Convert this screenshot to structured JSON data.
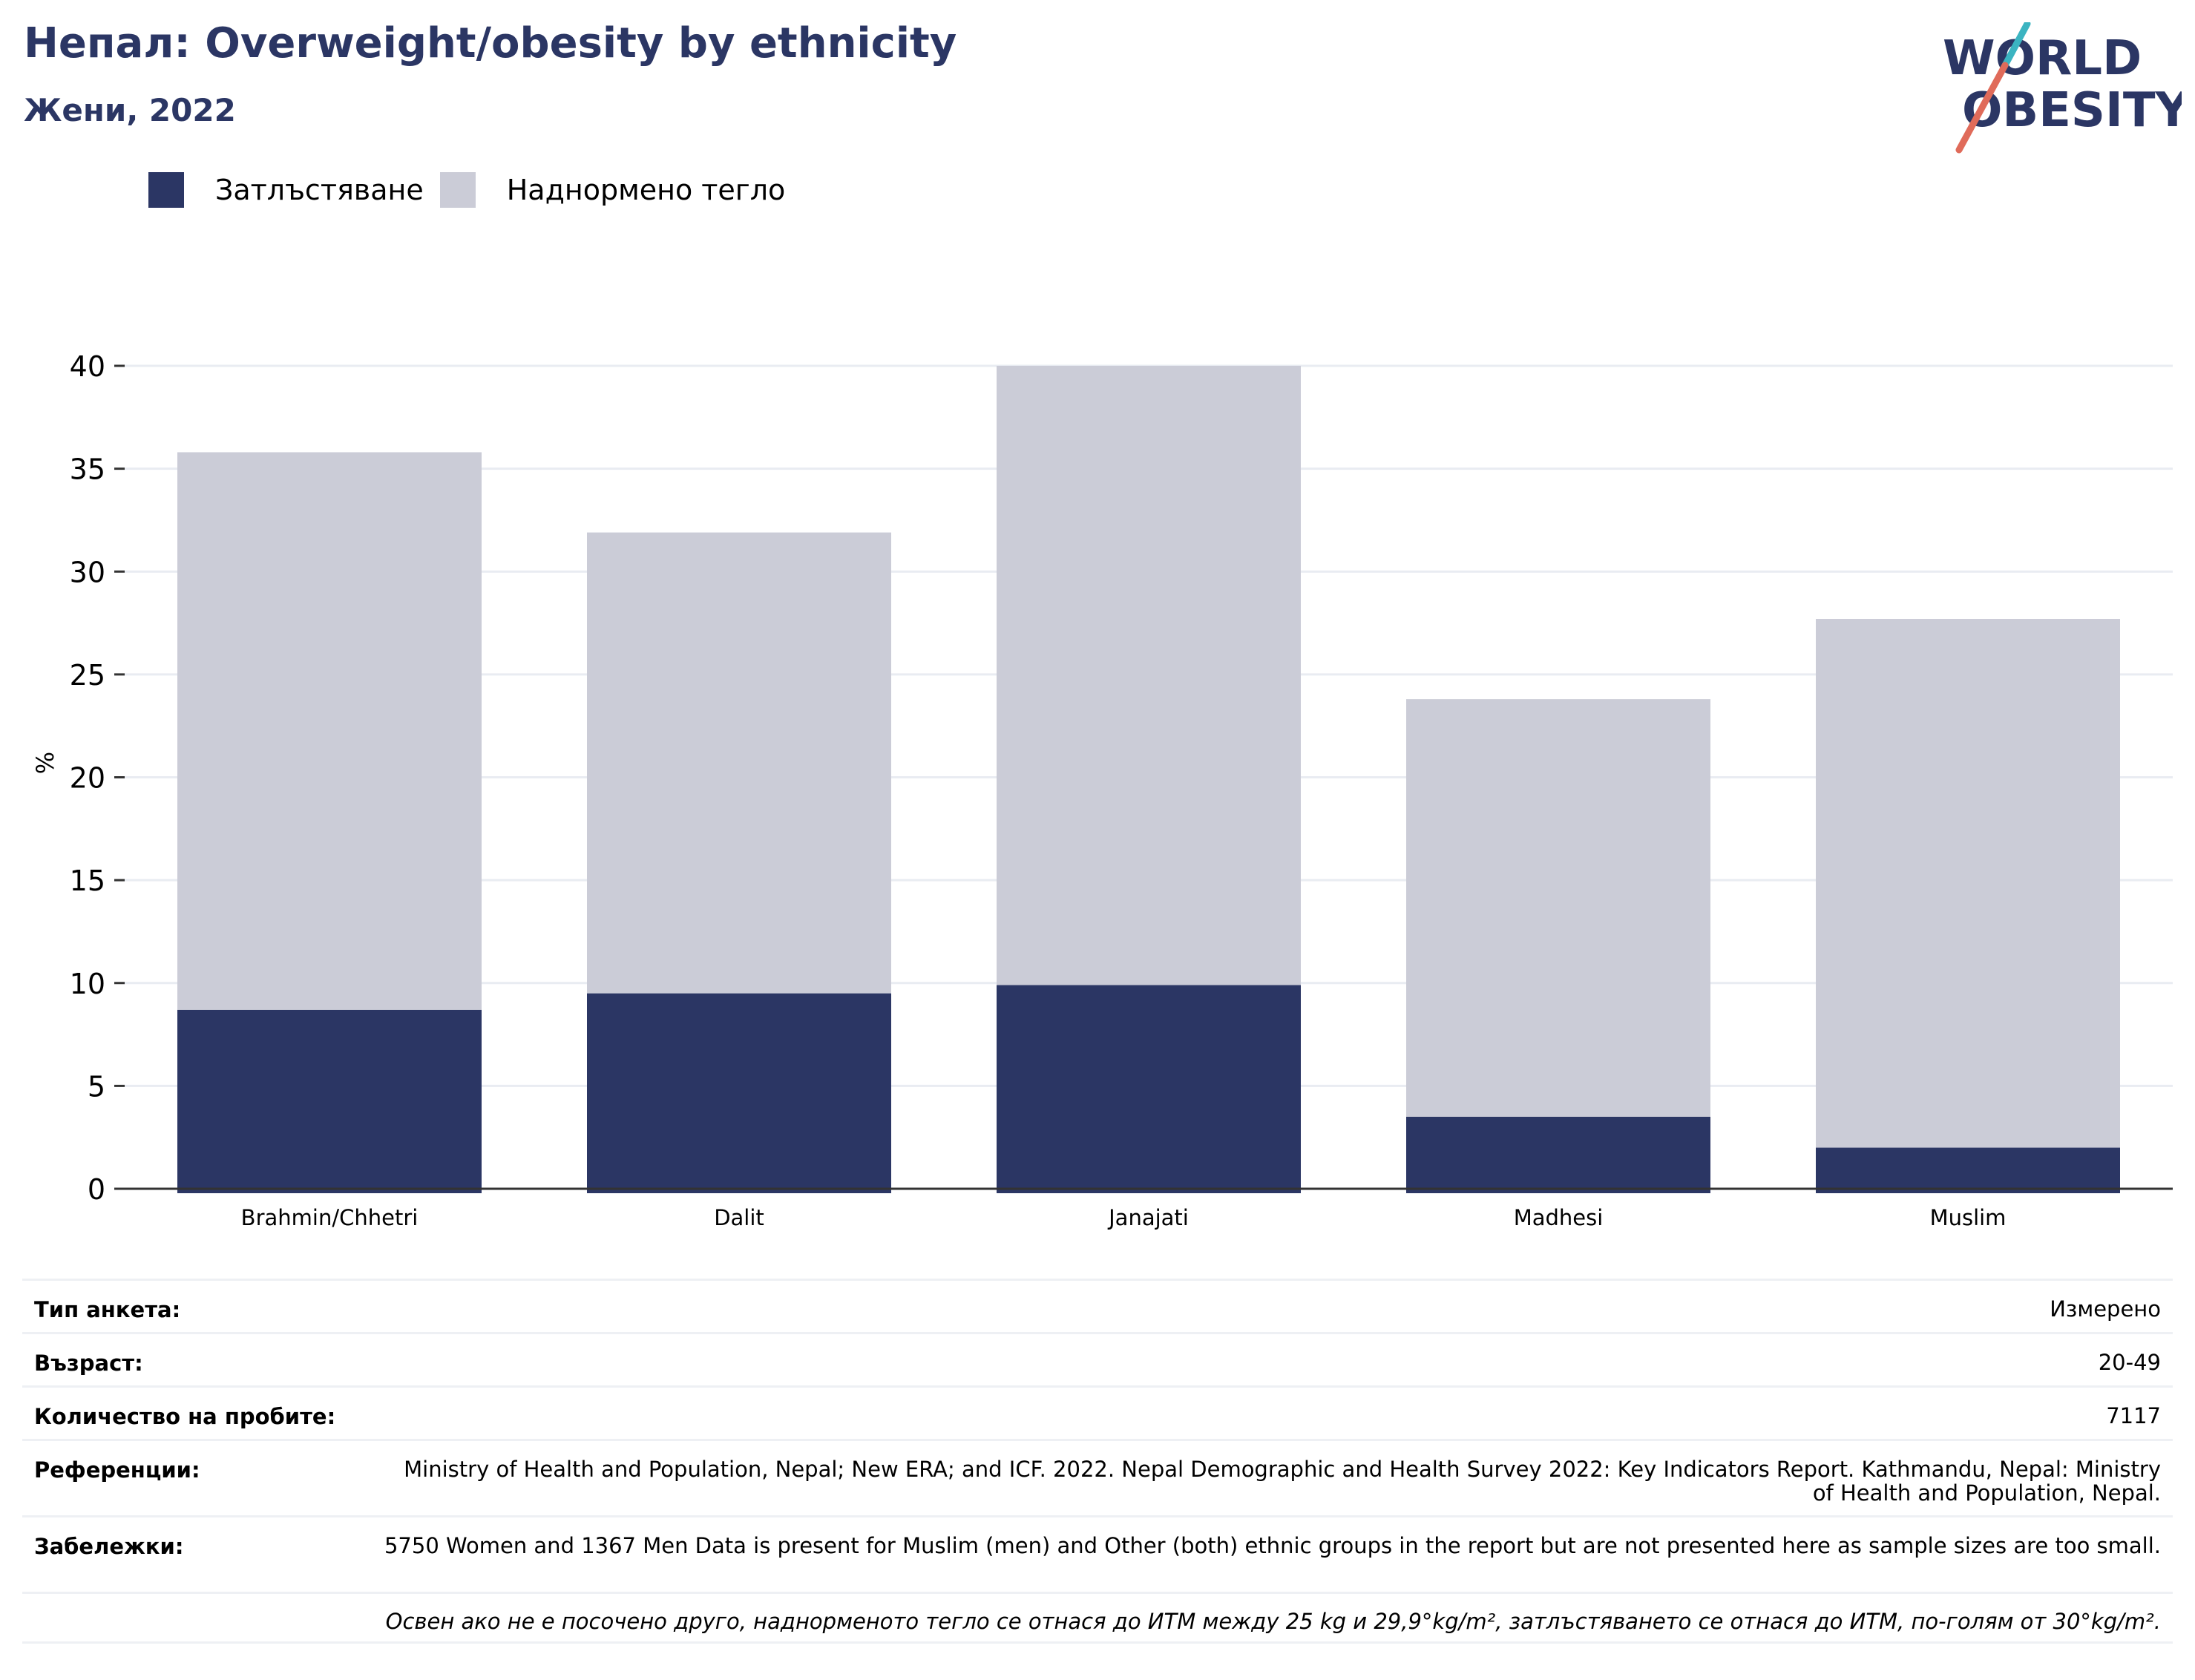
{
  "header": {
    "title": "Непал: Overweight/obesity by ethnicity",
    "subtitle": "Жени, 2022"
  },
  "logo": {
    "line1": "WORLD",
    "line2": "OBESITY",
    "text_color": "#2b3664",
    "accent_teal": "#3bb4c1",
    "accent_coral": "#e06b5a"
  },
  "legend": {
    "items": [
      {
        "label": "Затлъстяване",
        "color": "#2b3664"
      },
      {
        "label": "Наднормено тегло",
        "color": "#cbccd7"
      }
    ]
  },
  "chart_data": {
    "type": "bar",
    "stacked": true,
    "categories": [
      "Brahmin/Chhetri",
      "Dalit",
      "Janajati",
      "Madhesi",
      "Muslim"
    ],
    "series": [
      {
        "name": "Затлъстяване",
        "values": [
          8.7,
          9.5,
          9.9,
          3.5,
          2.0
        ],
        "color": "#2b3664"
      },
      {
        "name": "Наднормено тегло",
        "values": [
          27.1,
          22.4,
          30.1,
          20.3,
          25.7
        ],
        "color": "#cbccd7"
      }
    ],
    "ylabel": "%",
    "xlabel": "",
    "ylim": [
      0,
      40
    ],
    "yticks": [
      0,
      5,
      10,
      15,
      20,
      25,
      30,
      35,
      40
    ],
    "grid": true,
    "legend_position": "top-left"
  },
  "metadata": {
    "rows": [
      {
        "key": "Тип анкета:",
        "value": "Измерено"
      },
      {
        "key": "Възраст:",
        "value": "20-49"
      },
      {
        "key": "Количество на пробите:",
        "value": "7117"
      },
      {
        "key": "Референции:",
        "value": "Ministry of Health and Population, Nepal; New ERA; and ICF. 2022. Nepal Demographic and Health Survey 2022: Key Indicators Report. Kathmandu, Nepal: Ministry of Health and Population, Nepal."
      },
      {
        "key": "Забележки:",
        "value": "5750 Women and 1367 Men Data is present for Muslim (men) and Other (both) ethnic groups in the report but are not presented here as sample sizes are too small."
      }
    ],
    "footnote": "Освен ако не е посочено друго, наднорменото тегло се отнася до ИТМ между 25 kg и 29,9°kg/m², затлъстяването се отнася до ИТМ, по-голям от 30°kg/m²."
  }
}
